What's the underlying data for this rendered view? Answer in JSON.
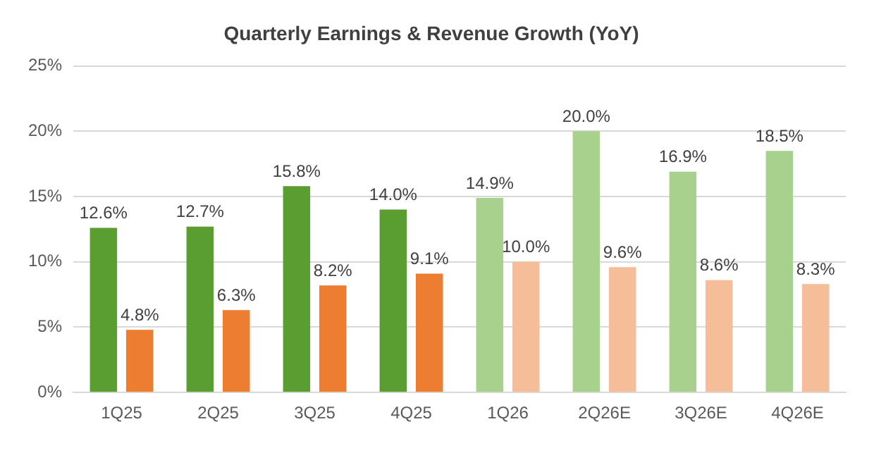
{
  "chart_data": {
    "type": "bar",
    "title": "Quarterly Earnings & Revenue Growth (YoY)",
    "categories": [
      "1Q25",
      "2Q25",
      "3Q25",
      "4Q25",
      "1Q26",
      "2Q26E",
      "3Q26E",
      "4Q26E"
    ],
    "series": [
      {
        "colors": [
          "#5a9e32",
          "#5a9e32",
          "#5a9e32",
          "#5a9e32",
          "#a9d18e",
          "#a9d18e",
          "#a9d18e",
          "#a9d18e"
        ],
        "values": [
          12.6,
          12.7,
          15.8,
          14.0,
          14.9,
          20.0,
          16.9,
          18.5
        ],
        "value_labels": [
          "12.6%",
          "12.7%",
          "15.8%",
          "14.0%",
          "14.9%",
          "20.0%",
          "16.9%",
          "18.5%"
        ]
      },
      {
        "colors": [
          "#ed7d31",
          "#ed7d31",
          "#ed7d31",
          "#ed7d31",
          "#f6be98",
          "#f6be98",
          "#f6be98",
          "#f6be98"
        ],
        "values": [
          4.8,
          6.3,
          8.2,
          9.1,
          10.0,
          9.6,
          8.6,
          8.3
        ],
        "value_labels": [
          "4.8%",
          "6.3%",
          "8.2%",
          "9.1%",
          "10.0%",
          "9.6%",
          "8.6%",
          "8.3%"
        ]
      }
    ],
    "ylim": [
      0,
      25
    ],
    "yticks": [
      {
        "value": 0,
        "label": "0%"
      },
      {
        "value": 5,
        "label": "5%"
      },
      {
        "value": 10,
        "label": "10%"
      },
      {
        "value": 15,
        "label": "15%"
      },
      {
        "value": 20,
        "label": "20%"
      },
      {
        "value": 25,
        "label": "25%"
      }
    ],
    "grid": "y",
    "legend": false
  }
}
